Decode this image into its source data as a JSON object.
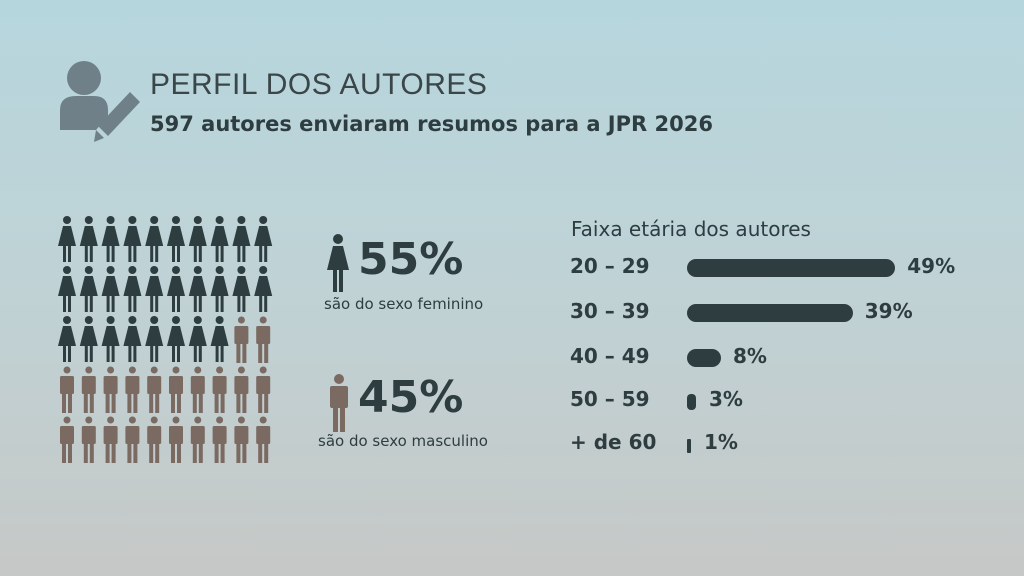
{
  "header": {
    "title": "PERFIL DOS AUTORES",
    "subtitle": "597 autores enviaram resumos para a JPR 2026",
    "icon": "author-edit-icon"
  },
  "gender": {
    "female": {
      "percent": "55%",
      "caption": "são do sexo feminino",
      "icon_count": 28,
      "color": "#2d3d40"
    },
    "male": {
      "percent": "45%",
      "caption": "são do sexo masculino",
      "icon_count": 22,
      "color": "#7a6a62"
    }
  },
  "chart_data": {
    "type": "bar",
    "orientation": "horizontal",
    "title": "Faixa etária dos autores",
    "categories": [
      "20 – 29",
      "30 – 39",
      "40 – 49",
      "50 – 59",
      "+ de 60"
    ],
    "values": [
      49,
      39,
      8,
      3,
      1
    ],
    "labels": [
      "49%",
      "39%",
      "8%",
      "3%",
      "1%"
    ],
    "unit": "%",
    "color": "#2d3d40"
  }
}
